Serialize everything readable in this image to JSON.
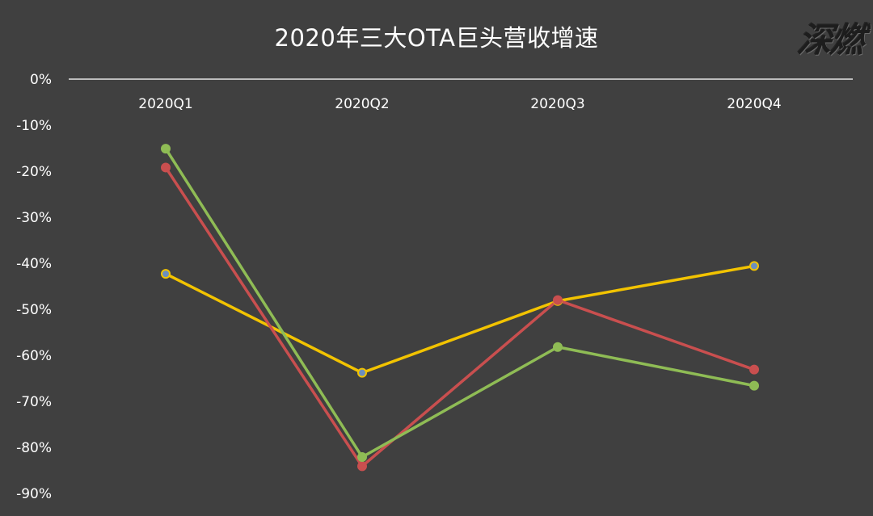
{
  "title": "2020年三大OTA巨头营收增速",
  "watermark": "深燃",
  "colors": {
    "background": "#404040",
    "axis_line": "#e6e6e6"
  },
  "chart_data": {
    "type": "line",
    "title": "2020年三大OTA巨头营收增速",
    "categories": [
      "2020Q1",
      "2020Q2",
      "2020Q3",
      "2020Q4"
    ],
    "y_ticks": [
      "0%",
      "-10%",
      "-20%",
      "-30%",
      "-40%",
      "-50%",
      "-60%",
      "-70%",
      "-80%",
      "-90%"
    ],
    "y_tick_values": [
      0,
      -10,
      -20,
      -30,
      -40,
      -50,
      -60,
      -70,
      -80,
      -90
    ],
    "ylim": [
      -95,
      0
    ],
    "x_axis_position": "top",
    "grid": false,
    "legend": "none",
    "series": [
      {
        "color": "#f2c300",
        "marker_color": "#6c8fbf",
        "values": [
          -42.3,
          -63.8,
          -48.2,
          -40.6
        ]
      },
      {
        "color": "#c94f4f",
        "marker_color": "#c94f4f",
        "values": [
          -19.2,
          -84.1,
          -48.0,
          -63.1
        ]
      },
      {
        "color": "#8fbc55",
        "marker_color": "#8fbc55",
        "values": [
          -15.1,
          -82.1,
          -58.2,
          -66.6
        ]
      }
    ]
  }
}
